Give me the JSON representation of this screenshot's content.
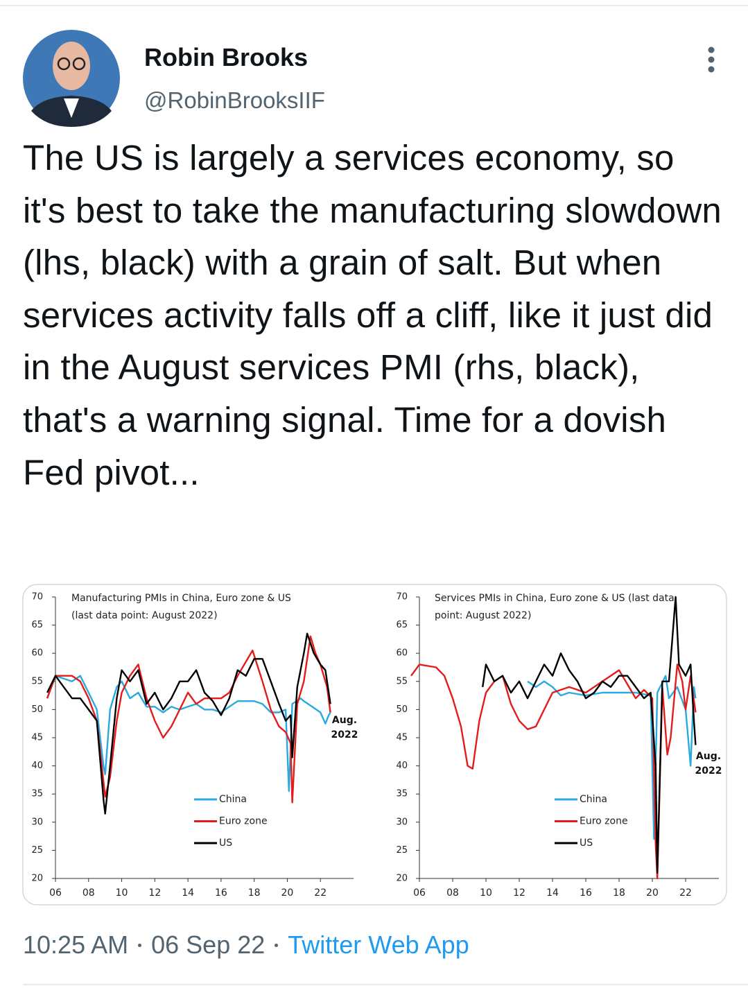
{
  "tweet": {
    "author": "Robin Brooks",
    "handle": "@RobinBrooksIIF",
    "text": "The US is largely a services economy, so it's best to take the manufacturing slowdown (lhs, black) with a grain of salt. But when services activity falls off a cliff, like it just did in the August services PMI (rhs, black), that's a warning signal. Time for a dovish Fed pivot...",
    "time": "10:25 AM",
    "date": "06 Sep 22",
    "source": "Twitter Web App"
  },
  "chart_data": [
    {
      "type": "line",
      "title": [
        "Manufacturing PMIs in China, Euro zone & US",
        "(last data point: August 2022)"
      ],
      "annotation": [
        "Aug.",
        "2022"
      ],
      "legend": "lower-center",
      "xlim": [
        2006,
        2024
      ],
      "ylim": [
        20,
        70
      ],
      "xticks": [
        {
          "value": 2006,
          "label": "06"
        },
        {
          "value": 2008,
          "label": "08"
        },
        {
          "value": 2010,
          "label": "10"
        },
        {
          "value": 2012,
          "label": "12"
        },
        {
          "value": 2014,
          "label": "14"
        },
        {
          "value": 2016,
          "label": "16"
        },
        {
          "value": 2018,
          "label": "18"
        },
        {
          "value": 2020,
          "label": "20"
        },
        {
          "value": 2022,
          "label": "22"
        }
      ],
      "yticks": [
        20,
        25,
        30,
        35,
        40,
        45,
        50,
        55,
        60,
        65,
        70
      ],
      "series": [
        {
          "name": "China",
          "color": "#29a9e0",
          "x": [
            2005.5,
            2006,
            2007,
            2007.5,
            2008,
            2008.5,
            2008.9,
            2009.0,
            2009.3,
            2009.7,
            2010,
            2010.5,
            2011,
            2011.5,
            2012,
            2012.5,
            2013,
            2013.5,
            2014,
            2014.5,
            2015,
            2015.5,
            2016,
            2016.5,
            2017,
            2017.5,
            2018,
            2018.5,
            2019,
            2019.5,
            2019.9,
            2020.1,
            2020.3,
            2020.8,
            2021,
            2021.5,
            2022,
            2022.3,
            2022.5,
            2022.6
          ],
          "values": [
            52,
            56,
            55,
            56,
            53,
            50,
            40,
            38.5,
            50,
            54,
            55,
            52,
            53,
            50.5,
            50.5,
            49.5,
            50.5,
            50,
            50.5,
            51,
            50,
            50,
            49.5,
            50.5,
            51.5,
            51.5,
            51.5,
            51,
            49.5,
            49.5,
            50,
            35.5,
            51,
            52,
            51.5,
            50.5,
            49.5,
            47.5,
            49,
            49.5
          ]
        },
        {
          "name": "Euro zone",
          "color": "#e31b1b",
          "x": [
            2005.5,
            2006,
            2007,
            2007.5,
            2008,
            2008.5,
            2009,
            2009.3,
            2009.7,
            2010,
            2010.5,
            2011,
            2011.5,
            2012,
            2012.5,
            2013,
            2013.5,
            2014,
            2014.5,
            2015,
            2016,
            2016.5,
            2017,
            2017.9,
            2018.5,
            2019,
            2019.5,
            2019.9,
            2020.2,
            2020.3,
            2020.6,
            2021,
            2021.4,
            2021.7,
            2022,
            2022.4,
            2022.6
          ],
          "values": [
            52,
            56,
            56,
            55,
            52,
            48,
            34.5,
            38,
            48,
            53,
            56,
            58,
            52,
            48,
            45,
            47,
            50,
            53,
            51,
            52,
            52,
            53,
            56,
            60.5,
            55,
            50,
            47,
            46,
            44,
            33.5,
            51,
            55,
            63,
            60,
            58,
            54,
            49.5
          ]
        },
        {
          "name": "US",
          "color": "#000000",
          "x": [
            2005.5,
            2006,
            2007,
            2007.5,
            2008,
            2008.5,
            2008.9,
            2009.0,
            2009.3,
            2009.7,
            2010,
            2010.5,
            2011,
            2011.5,
            2012,
            2012.5,
            2013,
            2013.5,
            2014,
            2014.5,
            2015,
            2015.5,
            2016,
            2016.5,
            2017,
            2017.5,
            2018,
            2018.5,
            2019,
            2019.5,
            2019.9,
            2020.2,
            2020.3,
            2020.6,
            2021,
            2021.2,
            2021.6,
            2022,
            2022.3,
            2022.5,
            2022.6
          ],
          "values": [
            53,
            56,
            52,
            52,
            50,
            48,
            34,
            31.5,
            40,
            52,
            57,
            55,
            57,
            51,
            53,
            50,
            52,
            55,
            55,
            57,
            53,
            51.5,
            49,
            52,
            57,
            56,
            59,
            59,
            55,
            51,
            48,
            49,
            41.5,
            54,
            60,
            63.5,
            60,
            58,
            57,
            53,
            51
          ]
        }
      ]
    },
    {
      "type": "line",
      "title": [
        "Services PMIs in China, Euro zone & US (last data",
        "point: August 2022)"
      ],
      "annotation": [
        "Aug.",
        "2022"
      ],
      "legend": "lower-center",
      "xlim": [
        2006,
        2024
      ],
      "ylim": [
        20,
        70
      ],
      "xticks": [
        {
          "value": 2006,
          "label": "06"
        },
        {
          "value": 2008,
          "label": "08"
        },
        {
          "value": 2010,
          "label": "10"
        },
        {
          "value": 2012,
          "label": "12"
        },
        {
          "value": 2014,
          "label": "14"
        },
        {
          "value": 2016,
          "label": "16"
        },
        {
          "value": 2018,
          "label": "18"
        },
        {
          "value": 2020,
          "label": "20"
        },
        {
          "value": 2022,
          "label": "22"
        }
      ],
      "yticks": [
        20,
        25,
        30,
        35,
        40,
        45,
        50,
        55,
        60,
        65,
        70
      ],
      "series": [
        {
          "name": "China",
          "color": "#29a9e0",
          "x": [
            2012.5,
            2013,
            2013.5,
            2014,
            2014.5,
            2015,
            2016,
            2017,
            2018,
            2019,
            2019.9,
            2020.1,
            2020.3,
            2020.8,
            2021,
            2021.5,
            2022,
            2022.3,
            2022.5,
            2022.6
          ],
          "values": [
            55,
            54,
            55,
            54,
            52.5,
            53,
            52.5,
            53,
            53,
            53,
            52.5,
            27,
            53,
            56,
            52,
            54,
            50,
            40,
            54,
            52
          ]
        },
        {
          "name": "Euro zone",
          "color": "#e31b1b",
          "x": [
            2005.5,
            2006,
            2007,
            2007.5,
            2008,
            2008.5,
            2008.9,
            2009.2,
            2009.6,
            2010,
            2010.5,
            2011,
            2011.5,
            2012,
            2012.5,
            2013,
            2013.5,
            2014,
            2015,
            2016,
            2017,
            2018,
            2018.5,
            2019,
            2019.5,
            2020,
            2020.2,
            2020.3,
            2020.6,
            2020.9,
            2021.1,
            2021.5,
            2021.8,
            2022,
            2022.3,
            2022.6
          ],
          "values": [
            56,
            58,
            57.5,
            56,
            52,
            47,
            40,
            39.5,
            48,
            53,
            55,
            56,
            51,
            48,
            46.5,
            47,
            50,
            53,
            54,
            53,
            55,
            57,
            54.5,
            52,
            53.5,
            52,
            26,
            20,
            54,
            42,
            45,
            58,
            55,
            50,
            56,
            49.5
          ]
        },
        {
          "name": "US",
          "color": "#000000",
          "x": [
            2009.8,
            2010,
            2010.5,
            2011,
            2011.5,
            2012,
            2012.5,
            2013,
            2013.5,
            2014,
            2014.5,
            2015,
            2015.5,
            2016,
            2016.5,
            2017,
            2017.5,
            2018,
            2018.5,
            2019,
            2019.5,
            2019.9,
            2020.2,
            2020.3,
            2020.6,
            2021,
            2021.4,
            2021.6,
            2022,
            2022.3,
            2022.5,
            2022.6
          ],
          "values": [
            54,
            58,
            55,
            56,
            53,
            55,
            52,
            55,
            58,
            56,
            60,
            57,
            55,
            52,
            53,
            55,
            54,
            56,
            56,
            54,
            52,
            53,
            40,
            21,
            55,
            55,
            70,
            58,
            56,
            58,
            48,
            43.7
          ]
        }
      ]
    }
  ]
}
